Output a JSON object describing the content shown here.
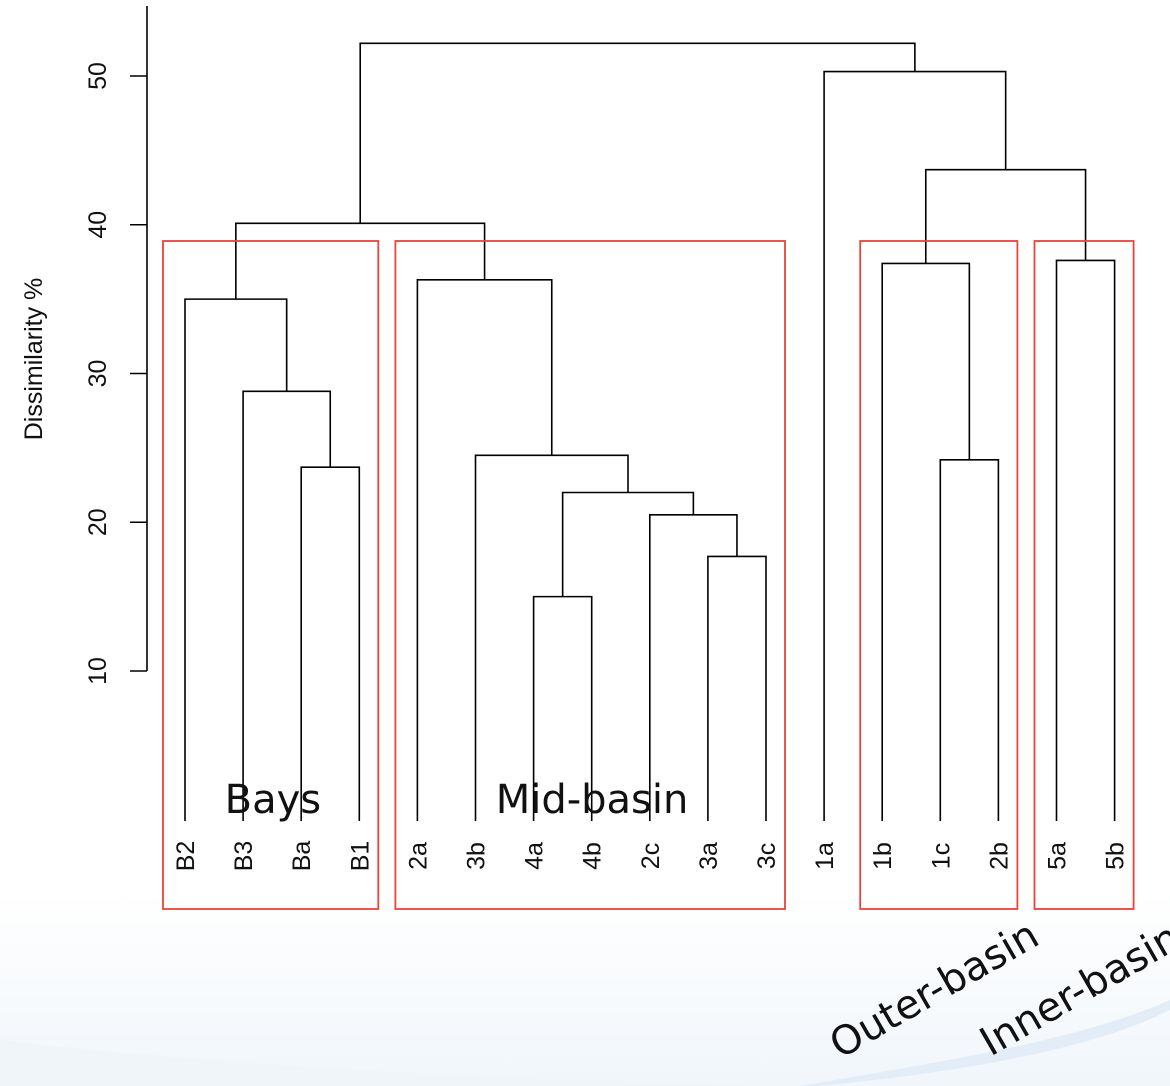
{
  "chart_data": {
    "type": "dendrogram",
    "ylabel": "Dissimilarity %",
    "yticks": [
      10,
      20,
      30,
      40,
      50
    ],
    "ylim": [
      0,
      53
    ],
    "leaves": [
      "B2",
      "B3",
      "Ba",
      "B1",
      "2a",
      "3b",
      "4a",
      "4b",
      "2c",
      "3a",
      "3c",
      "1a",
      "1b",
      "1c",
      "2b",
      "5a",
      "5b"
    ],
    "merges": [
      {
        "id": "m1",
        "a": "4a",
        "b": "4b",
        "height": 15.0
      },
      {
        "id": "m2",
        "a": "3a",
        "b": "3c",
        "height": 17.7
      },
      {
        "id": "m3",
        "a": "2c",
        "b": "m2",
        "height": 20.5
      },
      {
        "id": "m4",
        "a": "m1",
        "b": "m3",
        "height": 22.0
      },
      {
        "id": "m5",
        "a": "Ba",
        "b": "B1",
        "height": 23.7
      },
      {
        "id": "m6",
        "a": "1c",
        "b": "2b",
        "height": 24.2
      },
      {
        "id": "m7",
        "a": "3b",
        "b": "m4",
        "height": 24.5
      },
      {
        "id": "m8",
        "a": "B3",
        "b": "m5",
        "height": 28.8
      },
      {
        "id": "m9",
        "a": "B2",
        "b": "m8",
        "height": 35.0
      },
      {
        "id": "m10",
        "a": "2a",
        "b": "m7",
        "height": 36.3
      },
      {
        "id": "m11",
        "a": "1b",
        "b": "m6",
        "height": 37.4
      },
      {
        "id": "m12",
        "a": "5a",
        "b": "5b",
        "height": 37.6
      },
      {
        "id": "m13",
        "a": "m9",
        "b": "m10",
        "height": 40.1
      },
      {
        "id": "m14",
        "a": "m11",
        "b": "m12",
        "height": 43.7
      },
      {
        "id": "m15",
        "a": "1a",
        "b": "m14",
        "height": 50.3
      },
      {
        "id": "m16",
        "a": "m13",
        "b": "m15",
        "height": 52.2
      }
    ],
    "groups": [
      {
        "name": "Bays",
        "from": "B2",
        "to": "B1",
        "tilted": false
      },
      {
        "name": "Mid-basin",
        "from": "2a",
        "to": "3c",
        "tilted": false
      },
      {
        "name": "Outer-basin",
        "from": "1b",
        "to": "2b",
        "tilted": true
      },
      {
        "name": "Inner-basin",
        "from": "5a",
        "to": "5b",
        "tilted": true
      }
    ]
  },
  "colors": {
    "tree_lines": "#000000",
    "group_boxes": "#e8443a",
    "background_swoosh": "#d7e5f2"
  }
}
